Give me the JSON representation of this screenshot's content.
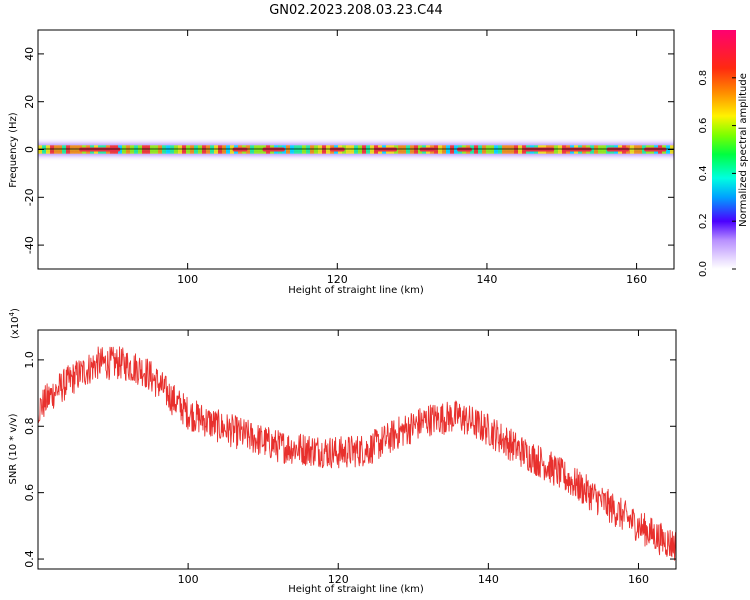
{
  "title": "GN02.2023.208.03.23.C44",
  "colors": {
    "snr_line": "#e8302d",
    "frame": "#000000",
    "background": "#ffffff"
  },
  "chart_data": [
    {
      "type": "heatmap",
      "xlabel": "Height of straight line (km)",
      "ylabel": "Frequency (Hz)",
      "xlim": [
        80,
        165
      ],
      "ylim": [
        -50,
        50
      ],
      "x_ticks": [
        100,
        120,
        140,
        160
      ],
      "x_tick_labels": [
        "100",
        "120",
        "140",
        "160"
      ],
      "y_ticks": [
        -40,
        -20,
        0,
        20,
        40
      ],
      "y_tick_labels": [
        "-40",
        "-20",
        "0",
        "20",
        "40"
      ],
      "colorbar": {
        "label": "Normalized spectral amplitude",
        "ticks": [
          0.0,
          0.2,
          0.4,
          0.6,
          0.8
        ],
        "tick_labels": [
          "0.0",
          "0.2",
          "0.4",
          "0.6",
          "0.8"
        ],
        "range": [
          0,
          1
        ],
        "colormap": "rainbow"
      },
      "signal_band": {
        "center_hz": 0,
        "half_width_hz": 2.5,
        "outer_halo_hz": 5
      }
    },
    {
      "type": "line",
      "xlabel": "Height of straight line (km)",
      "ylabel": "SNR (10 * v/v)",
      "y_scale_label": "(x10",
      "y_scale_exponent": "4",
      "y_scale_suffix": ")",
      "xlim": [
        80,
        165
      ],
      "ylim": [
        0.37,
        1.09
      ],
      "x_ticks": [
        100,
        120,
        140,
        160
      ],
      "x_tick_labels": [
        "100",
        "120",
        "140",
        "160"
      ],
      "y_ticks": [
        0.4,
        0.6,
        0.8,
        1.0
      ],
      "y_tick_labels": [
        "0.4",
        "0.6",
        "0.8",
        "1.0"
      ],
      "grid": false,
      "trend": {
        "x": [
          80,
          82,
          85,
          88,
          91,
          94,
          96,
          98,
          100,
          104,
          108,
          112,
          116,
          120,
          124,
          128,
          132,
          136,
          140,
          144,
          148,
          152,
          156,
          160,
          163,
          165
        ],
        "y": [
          0.85,
          0.9,
          0.95,
          0.99,
          0.99,
          0.97,
          0.93,
          0.88,
          0.84,
          0.8,
          0.77,
          0.74,
          0.73,
          0.72,
          0.73,
          0.78,
          0.82,
          0.83,
          0.79,
          0.73,
          0.68,
          0.62,
          0.56,
          0.5,
          0.46,
          0.44
        ]
      },
      "noise_amplitude": 0.05
    }
  ]
}
